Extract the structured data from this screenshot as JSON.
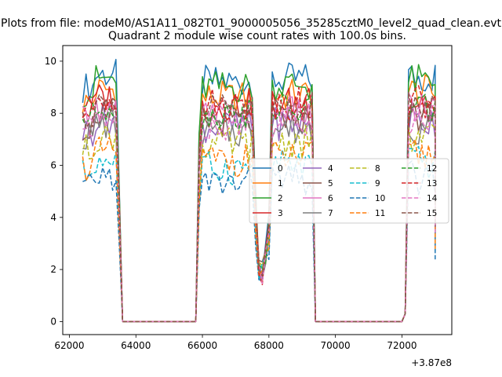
{
  "figure": {
    "suptitle": "Plots from file: modeM0/AS1A11_082T01_9000005056_35285cztM0_level2_quad_clean.evt",
    "title": "Quadrant 2 module wise count rates with 100.0s bins."
  },
  "chart_data": {
    "type": "line",
    "title": "Quadrant 2 module wise count rates with 100.0s bins.",
    "xlabel": "",
    "ylabel": "",
    "x_offset_label": "+3.87e8",
    "xlim": [
      61800,
      73500
    ],
    "ylim": [
      -0.5,
      10.6
    ],
    "xticks": [
      62000,
      64000,
      66000,
      68000,
      70000,
      72000
    ],
    "yticks": [
      0,
      2,
      4,
      6,
      8,
      10
    ],
    "grid": false,
    "legend_placement": "center-right",
    "legend_columns": 4,
    "segments": [
      {
        "x_start": 62400,
        "x_end": 63400,
        "step": 100
      },
      {
        "x_start": 65900,
        "x_end": 67500,
        "step": 100
      },
      {
        "x_start": 67600,
        "x_end": 69300,
        "step": 100
      },
      {
        "x_start": 72100,
        "x_end": 73000,
        "step": 100
      }
    ],
    "zero_gaps": [
      {
        "x_start": 63600,
        "x_end": 65800
      },
      {
        "x_start": 69400,
        "x_end": 72000
      }
    ],
    "series": [
      {
        "name": "0",
        "color": "#1f77b4",
        "dash": "solid",
        "level": 9.2
      },
      {
        "name": "1",
        "color": "#ff7f0e",
        "dash": "solid",
        "level": 8.6
      },
      {
        "name": "2",
        "color": "#2ca02c",
        "dash": "solid",
        "level": 9.0
      },
      {
        "name": "3",
        "color": "#d62728",
        "dash": "solid",
        "level": 8.3
      },
      {
        "name": "4",
        "color": "#9467bd",
        "dash": "solid",
        "level": 7.5
      },
      {
        "name": "5",
        "color": "#8c564b",
        "dash": "solid",
        "level": 7.7
      },
      {
        "name": "6",
        "color": "#e377c2",
        "dash": "solid",
        "level": 7.9
      },
      {
        "name": "7",
        "color": "#7f7f7f",
        "dash": "solid",
        "level": 7.3
      },
      {
        "name": "8",
        "color": "#bcbd22",
        "dash": "dashed",
        "level": 6.8
      },
      {
        "name": "9",
        "color": "#17becf",
        "dash": "dashed",
        "level": 5.9
      },
      {
        "name": "10",
        "color": "#1f77b4",
        "dash": "dashed",
        "level": 5.3
      },
      {
        "name": "11",
        "color": "#ff7f0e",
        "dash": "dashed",
        "level": 6.2
      },
      {
        "name": "12",
        "color": "#2ca02c",
        "dash": "dashed",
        "level": 8.0
      },
      {
        "name": "13",
        "color": "#d62728",
        "dash": "dashed",
        "level": 8.3
      },
      {
        "name": "14",
        "color": "#e377c2",
        "dash": "dashed",
        "level": 7.6
      },
      {
        "name": "15",
        "color": "#8c564b",
        "dash": "dashed",
        "level": 8.1
      }
    ]
  }
}
